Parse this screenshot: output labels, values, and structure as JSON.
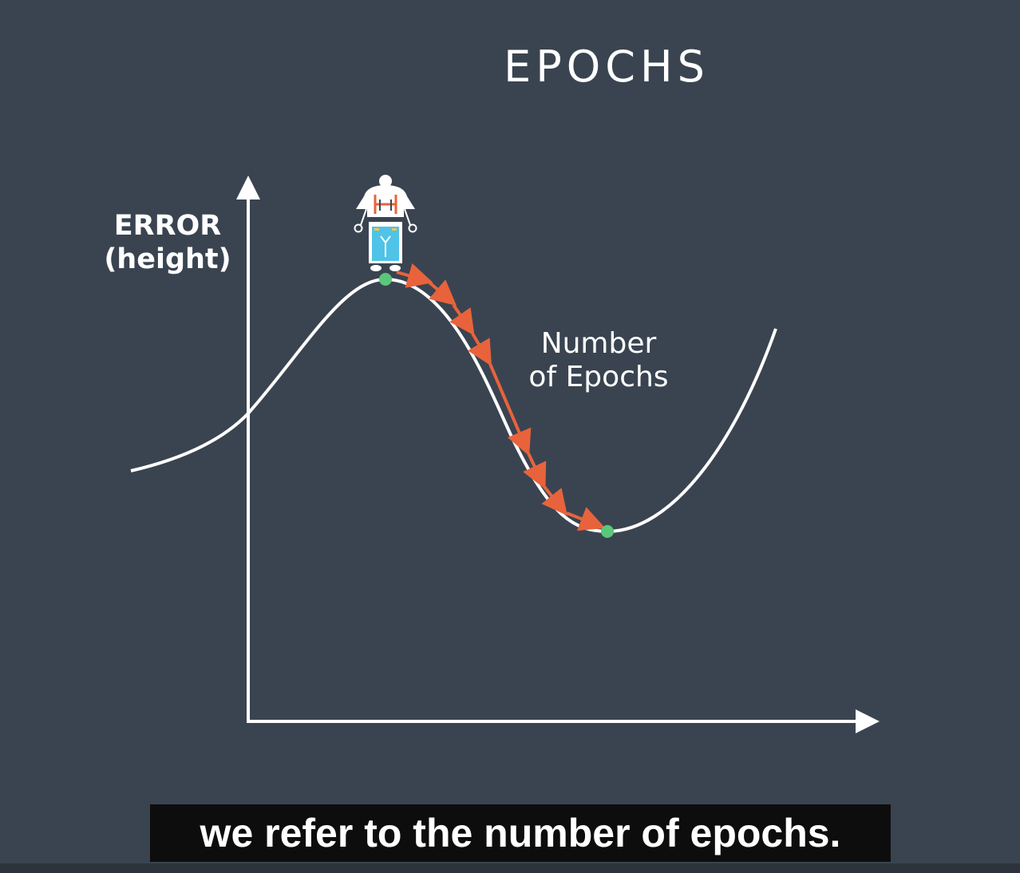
{
  "title": "EPOCHS",
  "y_axis_label": {
    "line1": "ERROR",
    "line2": "(height)"
  },
  "curve_label": {
    "line1": "Number",
    "line2": "of Epochs"
  },
  "caption": "we refer to the number of epochs.",
  "colors": {
    "background": "#3a4450",
    "curve": "#ffffff",
    "path_arrows": "#e8633c",
    "markers": "#5cc77a",
    "robot_body": "#4fc3e8"
  },
  "icons": {
    "robot": "robot-icon"
  }
}
